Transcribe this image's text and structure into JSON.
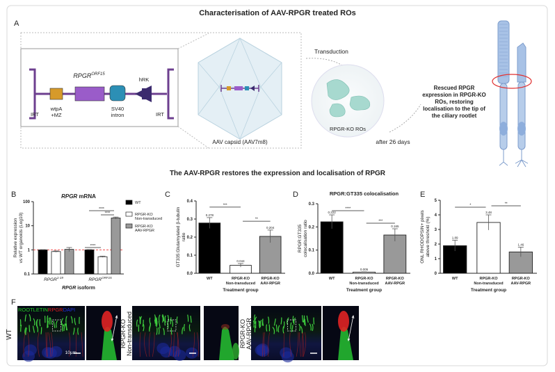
{
  "title": "Characterisation of AAV-RPGR treated ROs",
  "subtitle": "The AAV-RPGR restores the expression and localisation of RPGR",
  "panel_letters": [
    "A",
    "B",
    "C",
    "D",
    "E",
    "F"
  ],
  "panel_a": {
    "construct_label": "RPGR",
    "construct_sup": "ORF15",
    "elements": [
      "IRT",
      "wtpA",
      "+MZ",
      "SV40",
      "intron",
      "hRK",
      "IRT"
    ],
    "capsid_label": "AAV capsid (AAV7m8)",
    "transduction": "Transduction",
    "cells_label": "RPGR-KO ROs",
    "after": "after 26 days",
    "rescue_lines": [
      "Rescued RPGR",
      "expression in RPGR-KO",
      "ROs, restoring",
      "localisation to the tip of",
      "the ciliary rootlet"
    ],
    "colors": {
      "wtpA": "#d69a2a",
      "rpgr": "#9a5cc9",
      "sv40": "#2c8fb5",
      "hrk": "#3b2a6e",
      "itr": "#6d3f8f"
    }
  },
  "chart_data": [
    {
      "type": "bar",
      "panel": "B",
      "title": "RPGR mRNA",
      "title_italic_part": "RPGR",
      "title_rest": " mRNA",
      "ylabel": [
        "Relative expression",
        "vs WT organoids (Log10)"
      ],
      "xlabel": "RPGR isoform",
      "yscale": "log",
      "ylim": [
        0.1,
        100
      ],
      "yticks": [
        "0.1",
        "1",
        "10",
        "100"
      ],
      "ytick_values": [
        0.1,
        1,
        10,
        100
      ],
      "categories": [
        "RPGR",
        "RPGR"
      ],
      "category_sups": [
        "1-19",
        "ORF15"
      ],
      "series": [
        {
          "name": "WT",
          "values": [
            1.0,
            1.0
          ],
          "errors": [
            0.02,
            0.03
          ],
          "color": "#000000"
        },
        {
          "name": "RPGR-KO Non-transduced",
          "legend": [
            "RPGR-KO",
            "Non-transduced"
          ],
          "values": [
            0.85,
            0.52
          ],
          "errors": [
            0.05,
            0.03
          ],
          "color": "#ffffff"
        },
        {
          "name": "RPGR-KO AAV-RPGR",
          "legend": [
            "RPGR-KO",
            "AAV-RPGR"
          ],
          "values": [
            1.05,
            21
          ],
          "errors": [
            0.2,
            2
          ],
          "color": "#999999"
        }
      ],
      "reference_line": 1,
      "significance": [
        "****",
        "****",
        "****"
      ]
    },
    {
      "type": "bar",
      "panel": "C",
      "ylabel": [
        "GT335:Glutamylated β-tubulin",
        "ratio"
      ],
      "xlabel": "Treatment group",
      "ylim": [
        0,
        0.4
      ],
      "yticks": [
        "0.0",
        "0.1",
        "0.2",
        "0.3",
        "0.4"
      ],
      "ytick_values": [
        0,
        0.1,
        0.2,
        0.3,
        0.4
      ],
      "categories": [
        [
          "WT"
        ],
        [
          "RPGR-KO",
          "Non-transduced"
        ],
        [
          "RPGR-KO",
          "AAV-RPGR"
        ]
      ],
      "values": [
        0.278,
        0.044,
        0.204
      ],
      "labels": [
        "0.278",
        "0.044",
        "0.204"
      ],
      "errors": [
        0.03,
        0.01,
        0.035
      ],
      "colors": [
        "#000000",
        "#ffffff",
        "#999999"
      ],
      "significance": [
        "***",
        "**"
      ]
    },
    {
      "type": "bar",
      "panel": "D",
      "title": "RPGR:GT335 colocalisation",
      "ylabel": [
        "RPGR:GT335",
        "colocalisation ratio"
      ],
      "xlabel": "Treatment group",
      "ylim": [
        0,
        0.3
      ],
      "yticks": [
        "0.0",
        "0.1",
        "0.2",
        "0.3"
      ],
      "ytick_values": [
        0,
        0.1,
        0.2,
        0.3
      ],
      "categories": [
        [
          "WT"
        ],
        [
          "RPGR-KO",
          "Non-transduced"
        ],
        [
          "RPGR-KO",
          "AAV-RPGR"
        ]
      ],
      "values": [
        0.222,
        0.005,
        0.165
      ],
      "labels": [
        "0.222",
        "0.005",
        "0.165"
      ],
      "errors": [
        0.03,
        0.001,
        0.027
      ],
      "colors": [
        "#000000",
        "#ffffff",
        "#999999"
      ],
      "significance": [
        "****",
        "***"
      ]
    },
    {
      "type": "bar",
      "panel": "E",
      "ylabel": [
        "ONL RHODOPSIN+ pixels",
        "above threshold (%)"
      ],
      "xlabel": "Treatment group",
      "ylim": [
        0,
        5
      ],
      "yticks": [
        "0",
        "1",
        "2",
        "3",
        "4",
        "5"
      ],
      "ytick_values": [
        0,
        1,
        2,
        3,
        4,
        5
      ],
      "categories": [
        [
          "WT"
        ],
        [
          "RPGR-KO",
          "Non-transduced"
        ],
        [
          "RPGR-KO",
          "AAV-RPGR"
        ]
      ],
      "values": [
        1.89,
        3.48,
        1.46
      ],
      "labels": [
        "1.89",
        "3.48",
        "1.46"
      ],
      "errors": [
        0.37,
        0.52,
        0.33
      ],
      "colors": [
        "#000000",
        "#ffffff",
        "#999999"
      ],
      "significance": [
        "*",
        "**"
      ]
    }
  ],
  "panel_f": {
    "stain_labels": [
      "ROOTLETIN",
      "RPGR",
      "DAPI"
    ],
    "stain_colors": [
      "#22cc22",
      "#e02020",
      "#2233dd"
    ],
    "rows": [
      [
        "WT"
      ],
      [
        "RPGR-KO",
        "Non-transduced"
      ],
      [
        "RPGR-KO",
        "AAV-RPGR"
      ]
    ],
    "scale_bar": "10µm"
  }
}
